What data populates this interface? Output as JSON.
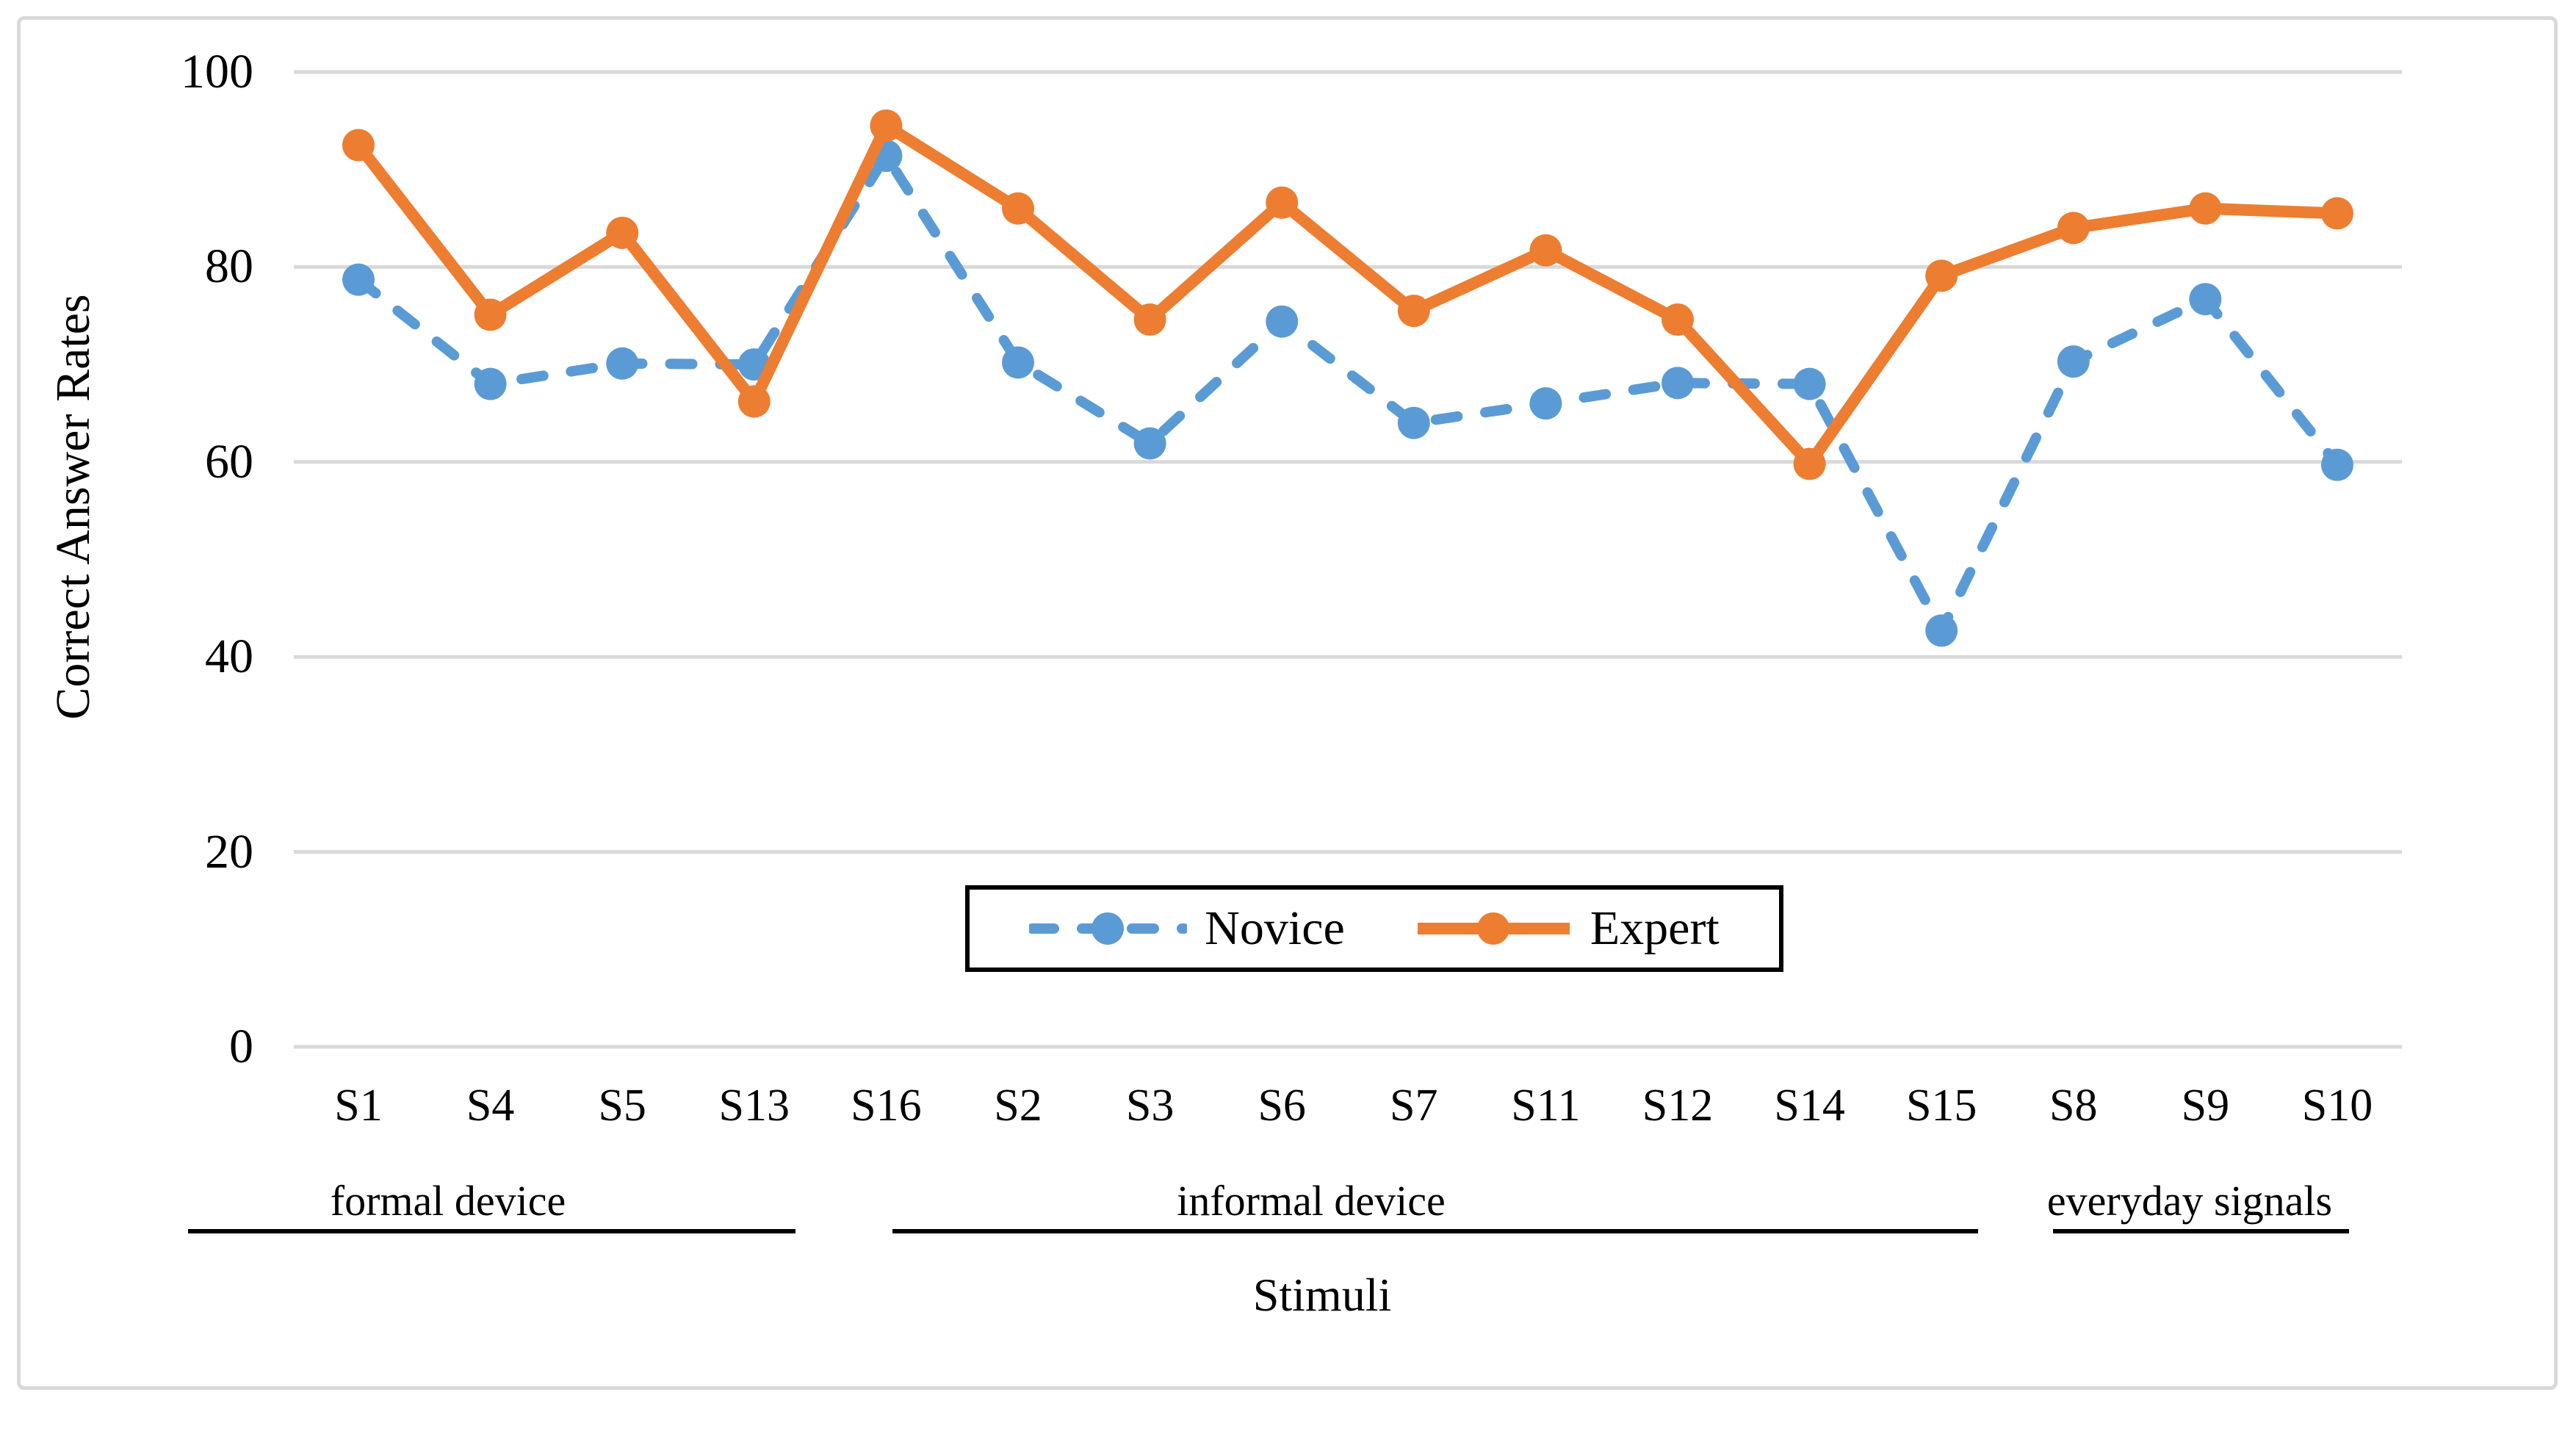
{
  "chart_data": {
    "type": "line",
    "title": "",
    "xlabel": "Stimuli",
    "ylabel": "Correct Answer Rates",
    "categories": [
      "S1",
      "S4",
      "S5",
      "S13",
      "S16",
      "S2",
      "S3",
      "S6",
      "S7",
      "S11",
      "S12",
      "S14",
      "S15",
      "S8",
      "S9",
      "S10"
    ],
    "series": [
      {
        "name": "Novice",
        "color": "#5B9BD5",
        "line_style": "dashed",
        "marker": "circle",
        "values": [
          78.7,
          68.0,
          70.1,
          70.0,
          91.4,
          70.2,
          61.9,
          74.4,
          64.0,
          66.0,
          68.1,
          68.0,
          42.7,
          70.3,
          76.7,
          59.7
        ]
      },
      {
        "name": "Expert",
        "color": "#ED7D31",
        "line_style": "solid",
        "marker": "circle",
        "values": [
          92.5,
          75.1,
          83.5,
          66.2,
          94.5,
          86.0,
          74.6,
          86.6,
          75.5,
          81.7,
          74.6,
          59.8,
          79.1,
          84.0,
          86.0,
          85.5
        ]
      }
    ],
    "ylim": [
      0,
      100
    ],
    "yticks": [
      100,
      80,
      60,
      40,
      20,
      0
    ],
    "grid": "horizontal",
    "gridline_color": "#D9D9D9",
    "legend_position": "bottom-center-boxed",
    "groups": [
      {
        "label": "formal device",
        "categories": [
          "S1",
          "S4",
          "S5",
          "S13"
        ]
      },
      {
        "label": "informal device",
        "categories": [
          "S16",
          "S2",
          "S3",
          "S6",
          "S7",
          "S11",
          "S12",
          "S14",
          "S15"
        ]
      },
      {
        "label": "everyday signals",
        "categories": [
          "S8",
          "S9",
          "S10"
        ]
      }
    ]
  },
  "legend": {
    "items": [
      {
        "label": "Novice"
      },
      {
        "label": "Expert"
      }
    ]
  },
  "frame_color": "#D9D9D9"
}
